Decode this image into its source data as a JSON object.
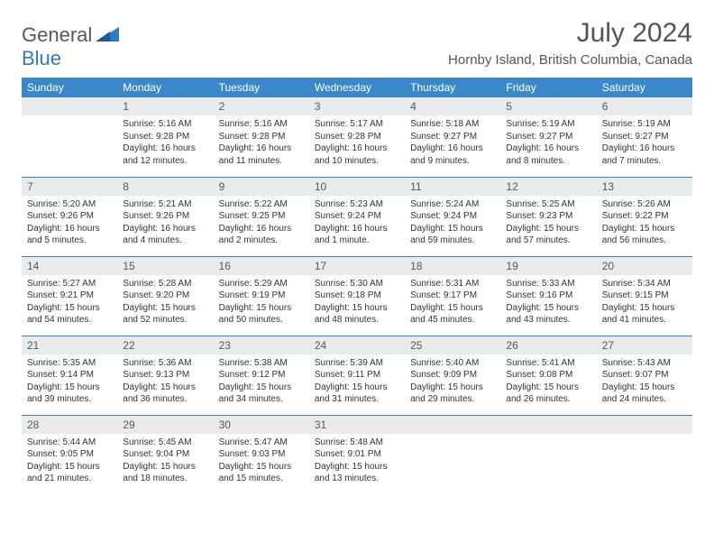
{
  "logo": {
    "general": "General",
    "blue": "Blue",
    "icon_color": "#2f7bbf"
  },
  "header": {
    "title": "July 2024",
    "subtitle": "Hornby Island, British Columbia, Canada"
  },
  "colors": {
    "header_bg": "#3a88c8",
    "header_text": "#ffffff",
    "daynum_bg": "#e9eaeb",
    "daynum_text": "#585858",
    "border": "#3a88c8"
  },
  "weekdays": [
    "Sunday",
    "Monday",
    "Tuesday",
    "Wednesday",
    "Thursday",
    "Friday",
    "Saturday"
  ],
  "weeks": [
    [
      {
        "day": "",
        "sunrise": "",
        "sunset": "",
        "daylight": ""
      },
      {
        "day": "1",
        "sunrise": "Sunrise: 5:16 AM",
        "sunset": "Sunset: 9:28 PM",
        "daylight": "Daylight: 16 hours and 12 minutes."
      },
      {
        "day": "2",
        "sunrise": "Sunrise: 5:16 AM",
        "sunset": "Sunset: 9:28 PM",
        "daylight": "Daylight: 16 hours and 11 minutes."
      },
      {
        "day": "3",
        "sunrise": "Sunrise: 5:17 AM",
        "sunset": "Sunset: 9:28 PM",
        "daylight": "Daylight: 16 hours and 10 minutes."
      },
      {
        "day": "4",
        "sunrise": "Sunrise: 5:18 AM",
        "sunset": "Sunset: 9:27 PM",
        "daylight": "Daylight: 16 hours and 9 minutes."
      },
      {
        "day": "5",
        "sunrise": "Sunrise: 5:19 AM",
        "sunset": "Sunset: 9:27 PM",
        "daylight": "Daylight: 16 hours and 8 minutes."
      },
      {
        "day": "6",
        "sunrise": "Sunrise: 5:19 AM",
        "sunset": "Sunset: 9:27 PM",
        "daylight": "Daylight: 16 hours and 7 minutes."
      }
    ],
    [
      {
        "day": "7",
        "sunrise": "Sunrise: 5:20 AM",
        "sunset": "Sunset: 9:26 PM",
        "daylight": "Daylight: 16 hours and 5 minutes."
      },
      {
        "day": "8",
        "sunrise": "Sunrise: 5:21 AM",
        "sunset": "Sunset: 9:26 PM",
        "daylight": "Daylight: 16 hours and 4 minutes."
      },
      {
        "day": "9",
        "sunrise": "Sunrise: 5:22 AM",
        "sunset": "Sunset: 9:25 PM",
        "daylight": "Daylight: 16 hours and 2 minutes."
      },
      {
        "day": "10",
        "sunrise": "Sunrise: 5:23 AM",
        "sunset": "Sunset: 9:24 PM",
        "daylight": "Daylight: 16 hours and 1 minute."
      },
      {
        "day": "11",
        "sunrise": "Sunrise: 5:24 AM",
        "sunset": "Sunset: 9:24 PM",
        "daylight": "Daylight: 15 hours and 59 minutes."
      },
      {
        "day": "12",
        "sunrise": "Sunrise: 5:25 AM",
        "sunset": "Sunset: 9:23 PM",
        "daylight": "Daylight: 15 hours and 57 minutes."
      },
      {
        "day": "13",
        "sunrise": "Sunrise: 5:26 AM",
        "sunset": "Sunset: 9:22 PM",
        "daylight": "Daylight: 15 hours and 56 minutes."
      }
    ],
    [
      {
        "day": "14",
        "sunrise": "Sunrise: 5:27 AM",
        "sunset": "Sunset: 9:21 PM",
        "daylight": "Daylight: 15 hours and 54 minutes."
      },
      {
        "day": "15",
        "sunrise": "Sunrise: 5:28 AM",
        "sunset": "Sunset: 9:20 PM",
        "daylight": "Daylight: 15 hours and 52 minutes."
      },
      {
        "day": "16",
        "sunrise": "Sunrise: 5:29 AM",
        "sunset": "Sunset: 9:19 PM",
        "daylight": "Daylight: 15 hours and 50 minutes."
      },
      {
        "day": "17",
        "sunrise": "Sunrise: 5:30 AM",
        "sunset": "Sunset: 9:18 PM",
        "daylight": "Daylight: 15 hours and 48 minutes."
      },
      {
        "day": "18",
        "sunrise": "Sunrise: 5:31 AM",
        "sunset": "Sunset: 9:17 PM",
        "daylight": "Daylight: 15 hours and 45 minutes."
      },
      {
        "day": "19",
        "sunrise": "Sunrise: 5:33 AM",
        "sunset": "Sunset: 9:16 PM",
        "daylight": "Daylight: 15 hours and 43 minutes."
      },
      {
        "day": "20",
        "sunrise": "Sunrise: 5:34 AM",
        "sunset": "Sunset: 9:15 PM",
        "daylight": "Daylight: 15 hours and 41 minutes."
      }
    ],
    [
      {
        "day": "21",
        "sunrise": "Sunrise: 5:35 AM",
        "sunset": "Sunset: 9:14 PM",
        "daylight": "Daylight: 15 hours and 39 minutes."
      },
      {
        "day": "22",
        "sunrise": "Sunrise: 5:36 AM",
        "sunset": "Sunset: 9:13 PM",
        "daylight": "Daylight: 15 hours and 36 minutes."
      },
      {
        "day": "23",
        "sunrise": "Sunrise: 5:38 AM",
        "sunset": "Sunset: 9:12 PM",
        "daylight": "Daylight: 15 hours and 34 minutes."
      },
      {
        "day": "24",
        "sunrise": "Sunrise: 5:39 AM",
        "sunset": "Sunset: 9:11 PM",
        "daylight": "Daylight: 15 hours and 31 minutes."
      },
      {
        "day": "25",
        "sunrise": "Sunrise: 5:40 AM",
        "sunset": "Sunset: 9:09 PM",
        "daylight": "Daylight: 15 hours and 29 minutes."
      },
      {
        "day": "26",
        "sunrise": "Sunrise: 5:41 AM",
        "sunset": "Sunset: 9:08 PM",
        "daylight": "Daylight: 15 hours and 26 minutes."
      },
      {
        "day": "27",
        "sunrise": "Sunrise: 5:43 AM",
        "sunset": "Sunset: 9:07 PM",
        "daylight": "Daylight: 15 hours and 24 minutes."
      }
    ],
    [
      {
        "day": "28",
        "sunrise": "Sunrise: 5:44 AM",
        "sunset": "Sunset: 9:05 PM",
        "daylight": "Daylight: 15 hours and 21 minutes."
      },
      {
        "day": "29",
        "sunrise": "Sunrise: 5:45 AM",
        "sunset": "Sunset: 9:04 PM",
        "daylight": "Daylight: 15 hours and 18 minutes."
      },
      {
        "day": "30",
        "sunrise": "Sunrise: 5:47 AM",
        "sunset": "Sunset: 9:03 PM",
        "daylight": "Daylight: 15 hours and 15 minutes."
      },
      {
        "day": "31",
        "sunrise": "Sunrise: 5:48 AM",
        "sunset": "Sunset: 9:01 PM",
        "daylight": "Daylight: 15 hours and 13 minutes."
      },
      {
        "day": "",
        "sunrise": "",
        "sunset": "",
        "daylight": ""
      },
      {
        "day": "",
        "sunrise": "",
        "sunset": "",
        "daylight": ""
      },
      {
        "day": "",
        "sunrise": "",
        "sunset": "",
        "daylight": ""
      }
    ]
  ]
}
